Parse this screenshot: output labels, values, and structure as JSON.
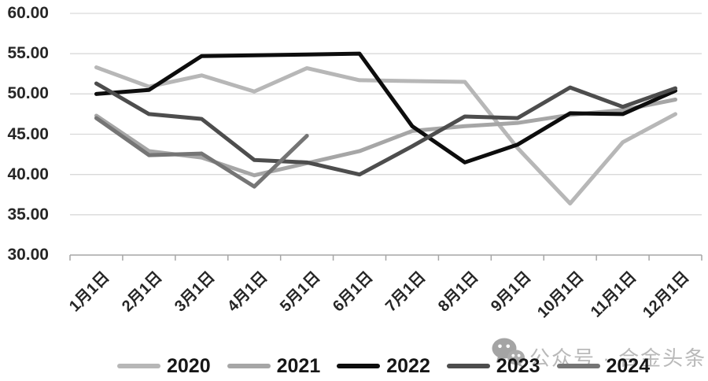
{
  "chart_data": {
    "type": "line",
    "title": "",
    "categories": [
      "1月1日",
      "2月1日",
      "3月1日",
      "4月1日",
      "5月1日",
      "6月1日",
      "7月1日",
      "8月1日",
      "9月1日",
      "10月1日",
      "11月1日",
      "12月1日"
    ],
    "series": [
      {
        "name": "2020",
        "color": "#b7b7b7",
        "values": [
          53.3,
          50.9,
          52.3,
          50.3,
          53.2,
          51.7,
          51.6,
          51.5,
          43.3,
          36.4,
          44.0,
          47.5
        ]
      },
      {
        "name": "2021",
        "color": "#a6a6a6",
        "values": [
          47.3,
          42.9,
          42.1,
          39.9,
          41.4,
          42.9,
          45.4,
          46.0,
          46.4,
          47.4,
          48.0,
          49.3
        ]
      },
      {
        "name": "2022",
        "color": "#0d0d0d",
        "values": [
          50.0,
          50.5,
          54.7,
          54.8,
          54.9,
          55.0,
          46.0,
          41.5,
          43.7,
          47.6,
          47.5,
          50.4
        ]
      },
      {
        "name": "2023",
        "color": "#4d4d4d",
        "values": [
          51.3,
          47.5,
          46.9,
          41.8,
          41.5,
          40.0,
          43.5,
          47.2,
          47.0,
          50.8,
          48.4,
          50.7
        ]
      },
      {
        "name": "2024",
        "color": "#757575",
        "values": [
          47.0,
          42.4,
          42.6,
          38.5,
          44.8
        ]
      }
    ],
    "ylim": [
      30,
      60
    ],
    "ytick_step": 5,
    "ytick_labels": [
      "30.00",
      "35.00",
      "40.00",
      "45.00",
      "50.00",
      "55.00",
      "60.00"
    ],
    "xlabel": "",
    "ylabel": "",
    "grid": true,
    "legend_position": "bottom",
    "line_width": 5
  },
  "watermark": {
    "text": "公众号 · 合金头条",
    "icon": "wechat-icon",
    "color": "#b9b9b9"
  },
  "style_colors": {
    "gridline": "#d9d9d9",
    "axis": "#a6a6a6",
    "tick": "#a6a6a6",
    "background": "#ffffff"
  }
}
